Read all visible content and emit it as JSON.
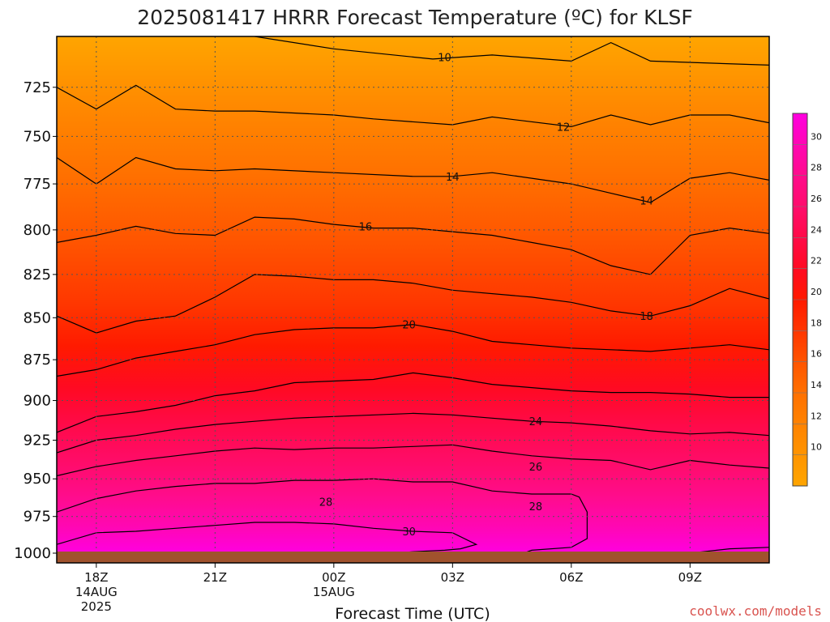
{
  "title": "2025081417 HRRR Forecast Temperature (ºC) for KLSF",
  "credit": "coolwx.com/models",
  "colors": {
    "ground": "#a0522d",
    "credit": "#d9534f",
    "contour": "#000000",
    "grid": "#555555",
    "bands": [
      "#ffa500",
      "#ff9400",
      "#ff8200",
      "#ff7000",
      "#ff5400",
      "#ff3600",
      "#ff1a00",
      "#ff0a22",
      "#ff0a48",
      "#ff0c6c",
      "#ff0c8c",
      "#ff07b4",
      "#ff00e0"
    ]
  },
  "chart_data": {
    "type": "contour",
    "title": "2025081417 HRRR Forecast Temperature (ºC) for KLSF",
    "xlabel": "Forecast Time (UTC)",
    "ylabel": "",
    "x_ticks": [
      {
        "hour": 1,
        "lines": [
          "18Z",
          "14AUG",
          "2025"
        ]
      },
      {
        "hour": 4,
        "lines": [
          "21Z"
        ]
      },
      {
        "hour": 7,
        "lines": [
          "00Z",
          "15AUG"
        ]
      },
      {
        "hour": 10,
        "lines": [
          "03Z"
        ]
      },
      {
        "hour": 13,
        "lines": [
          "06Z"
        ]
      },
      {
        "hour": 16,
        "lines": [
          "09Z"
        ]
      }
    ],
    "xlim": [
      0,
      18
    ],
    "y_ticks": [
      725,
      750,
      775,
      800,
      825,
      850,
      875,
      900,
      925,
      950,
      975,
      1000
    ],
    "ylim_pressure_hPa": [
      700,
      1000
    ],
    "y_axis": "log pressure, inverted",
    "grid": true,
    "colorbar": {
      "ticks": [
        10,
        12,
        14,
        16,
        18,
        20,
        22,
        24,
        26,
        28,
        30
      ],
      "levels_degC": [
        8,
        10,
        12,
        14,
        16,
        18,
        20,
        22,
        24,
        26,
        28,
        30,
        32
      ]
    },
    "contours": [
      {
        "level": 10,
        "label": "10",
        "label_at": [
          9.8,
          710
        ],
        "points": [
          [
            5,
            700
          ],
          [
            7,
            706
          ],
          [
            9.5,
            711
          ],
          [
            11,
            709
          ],
          [
            13,
            712
          ],
          [
            14,
            703
          ],
          [
            15,
            712
          ],
          [
            18,
            714
          ]
        ]
      },
      {
        "level": 12,
        "label": "12",
        "label_at": [
          12.8,
          745
        ],
        "points": [
          [
            0,
            725
          ],
          [
            1,
            736
          ],
          [
            2,
            724
          ],
          [
            3,
            736
          ],
          [
            4,
            737
          ],
          [
            5,
            737
          ],
          [
            7,
            739
          ],
          [
            8,
            741
          ],
          [
            10,
            744
          ],
          [
            11,
            740
          ],
          [
            13,
            745
          ],
          [
            14,
            739
          ],
          [
            15,
            744
          ],
          [
            16,
            739
          ],
          [
            17,
            739
          ],
          [
            18,
            743
          ]
        ]
      },
      {
        "level": 14,
        "label": "14",
        "label_at": [
          10,
          771
        ],
        "extra_label": {
          "text": "14",
          "at": [
            14.9,
            784
          ]
        },
        "points": [
          [
            0,
            761
          ],
          [
            1,
            775
          ],
          [
            2,
            761
          ],
          [
            3,
            767
          ],
          [
            4,
            768
          ],
          [
            5,
            767
          ],
          [
            7,
            769
          ],
          [
            9,
            771
          ],
          [
            10,
            771
          ],
          [
            11,
            769
          ],
          [
            13,
            775
          ],
          [
            14,
            780
          ],
          [
            15,
            785
          ],
          [
            16,
            772
          ],
          [
            17,
            769
          ],
          [
            18,
            773
          ]
        ]
      },
      {
        "level": 16,
        "label": "16",
        "label_at": [
          7.8,
          798
        ],
        "points": [
          [
            0,
            807
          ],
          [
            1,
            803
          ],
          [
            2,
            798
          ],
          [
            3,
            802
          ],
          [
            4,
            803
          ],
          [
            5,
            793
          ],
          [
            6,
            794
          ],
          [
            7,
            797
          ],
          [
            8,
            799
          ],
          [
            9,
            799
          ],
          [
            10,
            801
          ],
          [
            11,
            803
          ],
          [
            12,
            807
          ],
          [
            13,
            811
          ],
          [
            14,
            820
          ],
          [
            15,
            825
          ],
          [
            16,
            803
          ],
          [
            17,
            799
          ],
          [
            18,
            802
          ]
        ]
      },
      {
        "level": 18,
        "label": "18",
        "label_at": [
          14.9,
          849
        ],
        "points": [
          [
            0,
            849
          ],
          [
            1,
            859
          ],
          [
            2,
            852
          ],
          [
            3,
            849
          ],
          [
            4,
            838
          ],
          [
            5,
            825
          ],
          [
            6,
            826
          ],
          [
            7,
            828
          ],
          [
            8,
            828
          ],
          [
            9,
            830
          ],
          [
            10,
            834
          ],
          [
            12,
            838
          ],
          [
            13,
            841
          ],
          [
            14,
            846
          ],
          [
            15,
            849
          ],
          [
            16,
            843
          ],
          [
            17,
            833
          ],
          [
            18,
            839
          ]
        ]
      },
      {
        "level": 20,
        "label": "20",
        "label_at": [
          8.9,
          854
        ],
        "points": [
          [
            0,
            885
          ],
          [
            1,
            881
          ],
          [
            2,
            874
          ],
          [
            3,
            870
          ],
          [
            4,
            866
          ],
          [
            5,
            860
          ],
          [
            6,
            857
          ],
          [
            7,
            856
          ],
          [
            8,
            856
          ],
          [
            9,
            854
          ],
          [
            10,
            858
          ],
          [
            11,
            864
          ],
          [
            12,
            866
          ],
          [
            13,
            868
          ],
          [
            14,
            869
          ],
          [
            15,
            870
          ],
          [
            16,
            868
          ],
          [
            17,
            866
          ],
          [
            18,
            869
          ]
        ]
      },
      {
        "level": 22,
        "label": "",
        "points": [
          [
            0,
            920
          ],
          [
            1,
            910
          ],
          [
            2,
            907
          ],
          [
            3,
            903
          ],
          [
            4,
            897
          ],
          [
            5,
            894
          ],
          [
            6,
            889
          ],
          [
            8,
            887
          ],
          [
            9,
            883
          ],
          [
            10,
            886
          ],
          [
            11,
            890
          ],
          [
            12,
            892
          ],
          [
            13,
            894
          ],
          [
            14,
            895
          ],
          [
            15,
            895
          ],
          [
            16,
            896
          ],
          [
            17,
            898
          ],
          [
            18,
            898
          ]
        ]
      },
      {
        "level": 24,
        "label": "24",
        "label_at": [
          12.1,
          913
        ],
        "points": [
          [
            0,
            933
          ],
          [
            1,
            925
          ],
          [
            2,
            922
          ],
          [
            3,
            918
          ],
          [
            4,
            915
          ],
          [
            5,
            913
          ],
          [
            6,
            911
          ],
          [
            7,
            910
          ],
          [
            9,
            908
          ],
          [
            10,
            909
          ],
          [
            11,
            911
          ],
          [
            12,
            913
          ],
          [
            13,
            914
          ],
          [
            14,
            916
          ],
          [
            15,
            919
          ],
          [
            16,
            921
          ],
          [
            17,
            920
          ],
          [
            18,
            922
          ]
        ]
      },
      {
        "level": 26,
        "label": "26",
        "label_at": [
          12.1,
          942
        ],
        "points": [
          [
            0,
            948
          ],
          [
            1,
            942
          ],
          [
            2,
            938
          ],
          [
            3,
            935
          ],
          [
            4,
            932
          ],
          [
            5,
            930
          ],
          [
            6,
            931
          ],
          [
            7,
            930
          ],
          [
            8,
            930
          ],
          [
            9,
            929
          ],
          [
            10,
            928
          ],
          [
            11,
            932
          ],
          [
            12,
            935
          ],
          [
            13,
            937
          ],
          [
            14,
            938
          ],
          [
            15,
            944
          ],
          [
            16,
            938
          ],
          [
            17,
            941
          ],
          [
            18,
            943
          ]
        ]
      },
      {
        "level": 28,
        "label": "28",
        "label_at": [
          12.1,
          968
        ],
        "extra_label": {
          "text": "28",
          "at": [
            6.8,
            965
          ]
        },
        "points": [
          [
            0,
            972
          ],
          [
            1,
            963
          ],
          [
            2,
            958
          ],
          [
            3,
            955
          ],
          [
            4,
            953
          ],
          [
            5,
            953
          ],
          [
            6,
            951
          ],
          [
            7,
            951
          ],
          [
            8,
            950
          ],
          [
            9,
            952
          ],
          [
            10,
            952
          ],
          [
            11,
            958
          ],
          [
            12,
            960
          ],
          [
            13,
            960
          ],
          [
            13.2,
            962
          ],
          [
            13.4,
            972
          ],
          [
            13.4,
            990
          ],
          [
            13,
            996
          ],
          [
            12,
            998
          ],
          [
            11.8,
            1000
          ]
        ]
      },
      {
        "level": 30,
        "label": "30",
        "label_at": [
          8.9,
          985
        ],
        "points": [
          [
            0,
            994
          ],
          [
            1,
            986
          ],
          [
            2,
            985
          ],
          [
            3,
            983
          ],
          [
            4,
            981
          ],
          [
            5,
            979
          ],
          [
            6,
            979
          ],
          [
            7,
            980
          ],
          [
            8,
            983
          ],
          [
            9,
            985
          ],
          [
            10,
            986
          ],
          [
            10.6,
            994
          ],
          [
            10.2,
            997
          ],
          [
            9.8,
            998
          ],
          [
            9,
            999
          ],
          [
            8.6,
            1000
          ]
        ]
      },
      {
        "level": 30,
        "label": "",
        "points": [
          [
            16,
            1000
          ],
          [
            17,
            997
          ],
          [
            18,
            996
          ]
        ]
      }
    ]
  }
}
